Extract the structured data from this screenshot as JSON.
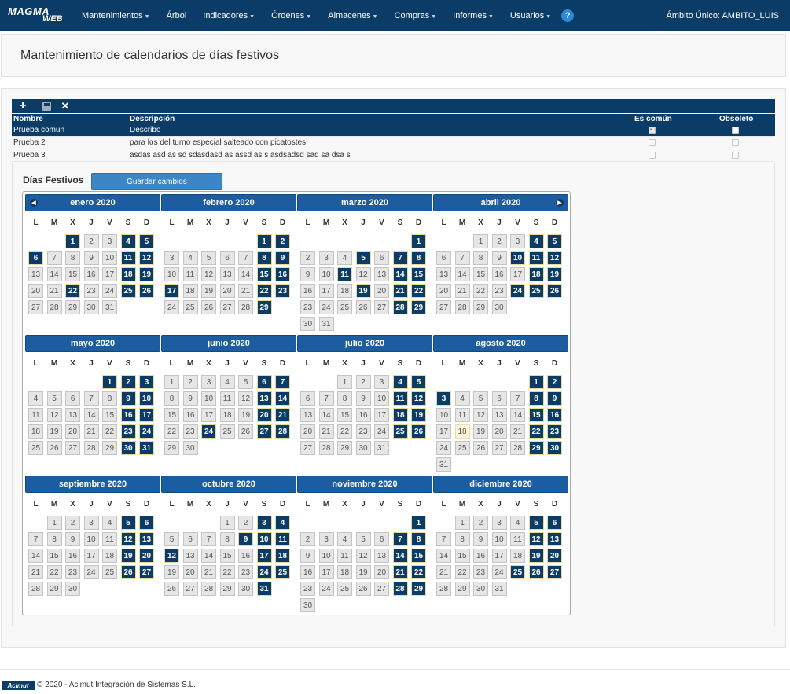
{
  "app": {
    "logo_top": "MAGMA",
    "logo_bottom": "WEB"
  },
  "nav": {
    "items": [
      {
        "label": "Mantenimientos",
        "dropdown": true
      },
      {
        "label": "Árbol",
        "dropdown": false
      },
      {
        "label": "Indicadores",
        "dropdown": true
      },
      {
        "label": "Órdenes",
        "dropdown": true
      },
      {
        "label": "Almacenes",
        "dropdown": true
      },
      {
        "label": "Compras",
        "dropdown": true
      },
      {
        "label": "Informes",
        "dropdown": true
      },
      {
        "label": "Usuarios",
        "dropdown": true
      }
    ],
    "help": "?",
    "scope": "Ámbito Único: AMBITO_LUIS"
  },
  "page": {
    "title": "Mantenimiento de calendarios de días festivos"
  },
  "toolbar": {
    "add_icon": "plus-icon",
    "save_icon": "save-icon",
    "delete_icon": "close-icon"
  },
  "grid": {
    "headers": {
      "name": "Nombre",
      "description": "Descripción",
      "common": "Es común",
      "obsolete": "Obsoleto"
    },
    "rows": [
      {
        "name": "Prueba comun",
        "description": "Describo",
        "common": true,
        "obsolete": false,
        "selected": true
      },
      {
        "name": "Prueba 2",
        "description": "para los del turno especial salteado con picatostes",
        "common": false,
        "obsolete": false,
        "selected": false
      },
      {
        "name": "Prueba 3",
        "description": "asdas asd as sd sdasdasd as assd as s asdsadsd sad sa dsa s",
        "common": false,
        "obsolete": false,
        "selected": false
      }
    ]
  },
  "holidays": {
    "label": "Días Festivos",
    "save_label": "Guardar cambios",
    "weekdays": [
      "L",
      "M",
      "X",
      "J",
      "V",
      "S",
      "D"
    ],
    "colors": {
      "holiday": "#0b3c67",
      "normal": "#e6e6e6",
      "highlight": "#fdf6d8"
    },
    "months": [
      {
        "name": "enero 2020",
        "offset": 2,
        "days": 31,
        "holidays": [
          1,
          4,
          5,
          6,
          11,
          12,
          18,
          19,
          22,
          25,
          26
        ]
      },
      {
        "name": "febrero 2020",
        "offset": 5,
        "days": 29,
        "holidays": [
          1,
          2,
          8,
          9,
          15,
          16,
          17,
          22,
          23,
          29
        ]
      },
      {
        "name": "marzo 2020",
        "offset": 6,
        "days": 31,
        "holidays": [
          1,
          5,
          7,
          8,
          11,
          14,
          15,
          19,
          21,
          22,
          28,
          29
        ]
      },
      {
        "name": "abril 2020",
        "offset": 2,
        "days": 30,
        "holidays": [
          4,
          5,
          10,
          11,
          12,
          18,
          19,
          24,
          25,
          26
        ]
      },
      {
        "name": "mayo 2020",
        "offset": 4,
        "days": 31,
        "holidays": [
          1,
          2,
          3,
          9,
          10,
          16,
          17,
          23,
          24,
          30,
          31
        ]
      },
      {
        "name": "junio 2020",
        "offset": 0,
        "days": 30,
        "holidays": [
          6,
          7,
          13,
          14,
          20,
          21,
          24,
          27,
          28
        ]
      },
      {
        "name": "julio 2020",
        "offset": 2,
        "days": 31,
        "holidays": [
          4,
          5,
          11,
          12,
          18,
          19,
          25,
          26
        ]
      },
      {
        "name": "agosto 2020",
        "offset": 5,
        "days": 31,
        "holidays": [
          1,
          2,
          3,
          8,
          9,
          15,
          16,
          22,
          23,
          29,
          30
        ],
        "highlight": [
          18
        ]
      },
      {
        "name": "septiembre 2020",
        "offset": 1,
        "days": 30,
        "holidays": [
          5,
          6,
          12,
          13,
          19,
          20,
          26,
          27
        ]
      },
      {
        "name": "octubre 2020",
        "offset": 3,
        "days": 31,
        "holidays": [
          3,
          4,
          9,
          10,
          11,
          12,
          17,
          18,
          24,
          25,
          31
        ]
      },
      {
        "name": "noviembre 2020",
        "offset": 6,
        "days": 30,
        "holidays": [
          1,
          7,
          8,
          14,
          15,
          21,
          22,
          28,
          29
        ]
      },
      {
        "name": "diciembre 2020",
        "offset": 1,
        "days": 31,
        "holidays": [
          5,
          6,
          12,
          13,
          19,
          20,
          25,
          26,
          27
        ]
      }
    ]
  },
  "footer": {
    "logo": "Acimut",
    "text": "© 2020 - Acimut Integración de Sistemas S.L."
  }
}
